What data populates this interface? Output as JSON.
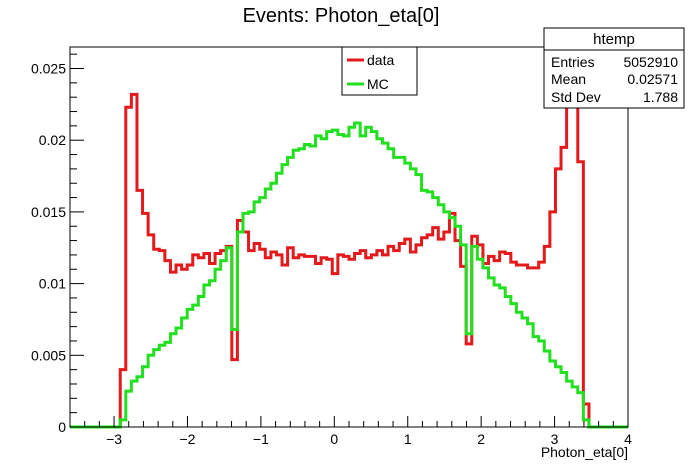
{
  "chart_data": {
    "type": "line",
    "title": "Events: Photon_eta[0]",
    "xlabel": "Photon_eta[0]",
    "ylabel": "",
    "xlim": [
      -3.6,
      4.0
    ],
    "ylim": [
      0,
      0.0265
    ],
    "x_ticks": [
      {
        "value": -3,
        "label": "−3"
      },
      {
        "value": -2,
        "label": "−2"
      },
      {
        "value": -1,
        "label": "−1"
      },
      {
        "value": 0,
        "label": "0"
      },
      {
        "value": 1,
        "label": "1"
      },
      {
        "value": 2,
        "label": "2"
      },
      {
        "value": 3,
        "label": "3"
      },
      {
        "value": 4,
        "label": "4"
      }
    ],
    "y_ticks": [
      {
        "value": 0,
        "label": "0"
      },
      {
        "value": 0.005,
        "label": "0.005"
      },
      {
        "value": 0.01,
        "label": "0.01"
      },
      {
        "value": 0.015,
        "label": "0.015"
      },
      {
        "value": 0.02,
        "label": "0.02"
      },
      {
        "value": 0.025,
        "label": "0.025"
      }
    ],
    "legend_position": "top-center",
    "series": [
      {
        "name": "data",
        "color": "#e3191b",
        "bin_width": 0.076,
        "x_start": -3.6,
        "values": [
          0,
          0,
          0,
          0,
          0,
          0,
          0,
          0,
          0,
          0.004,
          0.0223,
          0.0232,
          0.0165,
          0.0149,
          0.0134,
          0.0124,
          0.0123,
          0.0116,
          0.0108,
          0.0113,
          0.011,
          0.0113,
          0.012,
          0.0118,
          0.0121,
          0.0114,
          0.0121,
          0.0123,
          0.0126,
          0.0047,
          0.0144,
          0.0136,
          0.0123,
          0.0128,
          0.0124,
          0.0118,
          0.0122,
          0.012,
          0.0113,
          0.0125,
          0.0118,
          0.012,
          0.0119,
          0.0119,
          0.0114,
          0.0118,
          0.0117,
          0.0107,
          0.012,
          0.0119,
          0.0117,
          0.0121,
          0.0123,
          0.0118,
          0.012,
          0.0123,
          0.012,
          0.0126,
          0.0123,
          0.0128,
          0.0131,
          0.0122,
          0.0127,
          0.0132,
          0.0134,
          0.0139,
          0.0131,
          0.0136,
          0.0149,
          0.013,
          0.0112,
          0.0058,
          0.0133,
          0.0127,
          0.0114,
          0.0119,
          0.0116,
          0.0122,
          0.0121,
          0.0115,
          0.0113,
          0.0113,
          0.0111,
          0.0111,
          0.0115,
          0.0126,
          0.015,
          0.018,
          0.0195,
          0.0228,
          0.023,
          0.0185,
          0.0016,
          0,
          0,
          0,
          0,
          0,
          0,
          0
        ]
      },
      {
        "name": "MC",
        "color": "#22e01f",
        "bin_width": 0.076,
        "x_start": -3.6,
        "values": [
          0,
          0,
          0,
          0,
          0,
          0,
          0,
          0,
          0,
          0.0005,
          0.0025,
          0.0032,
          0.0035,
          0.0042,
          0.005,
          0.0054,
          0.0057,
          0.0059,
          0.0065,
          0.0069,
          0.0076,
          0.0082,
          0.0085,
          0.0091,
          0.0099,
          0.0102,
          0.011,
          0.0116,
          0.0125,
          0.0068,
          0.0136,
          0.0149,
          0.015,
          0.0157,
          0.016,
          0.0166,
          0.017,
          0.0177,
          0.0183,
          0.0188,
          0.0193,
          0.0194,
          0.0197,
          0.0196,
          0.0203,
          0.0201,
          0.0206,
          0.0207,
          0.0204,
          0.0203,
          0.0209,
          0.0212,
          0.0203,
          0.0209,
          0.0206,
          0.0201,
          0.0198,
          0.0194,
          0.0188,
          0.0188,
          0.0184,
          0.018,
          0.0176,
          0.0165,
          0.0164,
          0.016,
          0.0155,
          0.015,
          0.0146,
          0.014,
          0.0127,
          0.0065,
          0.0126,
          0.0117,
          0.0111,
          0.0104,
          0.0099,
          0.0097,
          0.0091,
          0.0086,
          0.008,
          0.0076,
          0.0072,
          0.0063,
          0.006,
          0.0053,
          0.0046,
          0.0042,
          0.0038,
          0.0032,
          0.0028,
          0.0024,
          0.0005,
          0,
          0,
          0,
          0,
          0,
          0,
          0
        ]
      }
    ]
  },
  "legend": {
    "items": [
      {
        "label": "data",
        "color": "#e3191b"
      },
      {
        "label": "MC",
        "color": "#22e01f"
      }
    ]
  },
  "stats_box": {
    "title": "htemp",
    "rows": [
      {
        "label": "Entries",
        "value": "5052910"
      },
      {
        "label": "Mean",
        "value": "0.02571"
      },
      {
        "label": "Std Dev",
        "value": "1.788"
      }
    ]
  }
}
